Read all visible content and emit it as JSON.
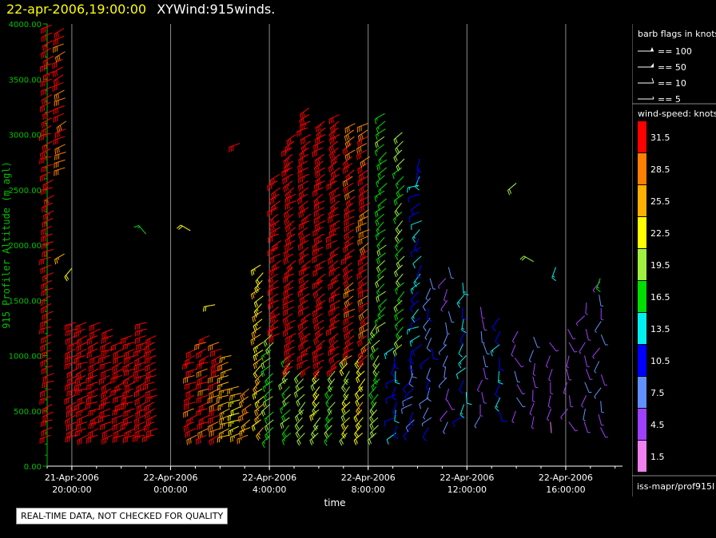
{
  "header": {
    "datetime": "22-apr-2006,19:00:00",
    "title": "XYWind:915winds."
  },
  "qc_notice": "REAL-TIME DATA, NOT CHECKED FOR QUALITY",
  "footer_id": "iss-mapr/prof915I",
  "legend": {
    "barb_title": "barb flags in knots",
    "barb_entries": [
      "== 100",
      "== 50",
      "== 10",
      "== 5"
    ],
    "speed_title": "wind-speed: knots",
    "speed_bins": [
      {
        "label": "31.5",
        "color": "#ff0000"
      },
      {
        "label": "28.5",
        "color": "#ff8000"
      },
      {
        "label": "25.5",
        "color": "#ffb000"
      },
      {
        "label": "22.5",
        "color": "#ffff00"
      },
      {
        "label": "19.5",
        "color": "#a0f040"
      },
      {
        "label": "16.5",
        "color": "#00dd00"
      },
      {
        "label": "13.5",
        "color": "#00f0f0"
      },
      {
        "label": "10.5",
        "color": "#0000ff"
      },
      {
        "label": "7.5",
        "color": "#6090ff"
      },
      {
        "label": "4.5",
        "color": "#a040ff"
      },
      {
        "label": "1.5",
        "color": "#f080f0"
      }
    ]
  },
  "chart_data": {
    "type": "scatter",
    "subtype": "wind-barb time-height",
    "xlabel": "time",
    "ylabel": "915 Profiler Altitude (m agl)",
    "ylim": [
      0,
      4000
    ],
    "xlim_hours_from_start": [
      -1.0,
      22.3
    ],
    "xticks": [
      {
        "hour": 0,
        "line1": "21-Apr-2006",
        "line2": "20:00:00"
      },
      {
        "hour": 4,
        "line1": "22-Apr-2006",
        "line2": "0:00:00"
      },
      {
        "hour": 8,
        "line1": "22-Apr-2006",
        "line2": "4:00:00"
      },
      {
        "hour": 12,
        "line1": "22-Apr-2006",
        "line2": "8:00:00"
      },
      {
        "hour": 16,
        "line1": "22-Apr-2006",
        "line2": "12:00:00"
      },
      {
        "hour": 20,
        "line1": "22-Apr-2006",
        "line2": "16:00:00"
      }
    ],
    "yticks": [
      "0.00",
      "500.00",
      "1000.00",
      "1500.00",
      "2000.00",
      "2500.00",
      "3000.00",
      "3500.00",
      "4000.00"
    ],
    "grid_x": true,
    "legend_placement": "right",
    "speed_colors": [
      "#f080f0",
      "#a040ff",
      "#6090ff",
      "#0000ff",
      "#00f0f0",
      "#00dd00",
      "#a0f040",
      "#ffff00",
      "#ffb000",
      "#ff8000",
      "#ff0000"
    ],
    "barb_series": [
      {
        "name": "t-0.8",
        "hour": -0.8,
        "alt_min": 280,
        "alt_max": 4000,
        "step": 70,
        "speed": 32,
        "dir": 250
      },
      {
        "name": "t-0.3",
        "hour": -0.3,
        "alt_min": 2700,
        "alt_max": 4000,
        "step": 70,
        "speed": 30,
        "dir": 245
      },
      {
        "name": "t0.2",
        "hour": 0.2,
        "alt_min": 280,
        "alt_max": 1300,
        "step": 60,
        "speed": 32,
        "dir": 250
      },
      {
        "name": "t0.6",
        "hour": 0.6,
        "alt_min": 280,
        "alt_max": 1300,
        "step": 60,
        "speed": 32,
        "dir": 250
      },
      {
        "name": "t1.1",
        "hour": 1.1,
        "alt_min": 280,
        "alt_max": 1300,
        "step": 60,
        "speed": 32,
        "dir": 250
      },
      {
        "name": "t1.6",
        "hour": 1.6,
        "alt_min": 280,
        "alt_max": 1250,
        "step": 60,
        "speed": 32,
        "dir": 250
      },
      {
        "name": "t2.1",
        "hour": 2.1,
        "alt_min": 280,
        "alt_max": 1150,
        "step": 60,
        "speed": 32,
        "dir": 250
      },
      {
        "name": "t2.5",
        "hour": 2.5,
        "alt_min": 280,
        "alt_max": 1200,
        "step": 60,
        "speed": 32,
        "dir": 250
      },
      {
        "name": "t3.0",
        "hour": 3.0,
        "alt_min": 280,
        "alt_max": 1300,
        "step": 60,
        "speed": 32,
        "dir": 250
      },
      {
        "name": "t3.4",
        "hour": 3.4,
        "alt_min": 280,
        "alt_max": 1200,
        "step": 60,
        "speed": 32,
        "dir": 250
      },
      {
        "name": "t5.0",
        "hour": 5.0,
        "alt_min": 280,
        "alt_max": 1100,
        "step": 60,
        "speed": 31,
        "dir": 250
      },
      {
        "name": "t5.5",
        "hour": 5.5,
        "alt_min": 280,
        "alt_max": 1200,
        "step": 60,
        "speed": 31,
        "dir": 250
      },
      {
        "name": "t6.0",
        "hour": 6.0,
        "alt_min": 280,
        "alt_max": 1150,
        "step": 60,
        "speed": 30,
        "dir": 250
      },
      {
        "name": "t6.4",
        "hour": 6.4,
        "alt_min": 280,
        "alt_max": 1000,
        "step": 60,
        "speed": 26,
        "dir": 250
      },
      {
        "name": "t6.8",
        "hour": 6.8,
        "alt_min": 300,
        "alt_max": 750,
        "step": 60,
        "speed": 23,
        "dir": 250
      },
      {
        "name": "t7.2",
        "hour": 7.2,
        "alt_min": 280,
        "alt_max": 700,
        "step": 70,
        "speed": 27,
        "dir": 240
      },
      {
        "name": "t7.7",
        "hour": 7.7,
        "alt_min": 350,
        "alt_max": 1850,
        "step": 70,
        "speed": 24,
        "dir": 230
      },
      {
        "name": "t8.1",
        "hour": 8.1,
        "alt_min": 280,
        "alt_max": 1200,
        "step": 70,
        "speed": 17,
        "dir": 230
      },
      {
        "name": "t8.4",
        "hour": 8.4,
        "alt_min": 1200,
        "alt_max": 2650,
        "step": 60,
        "speed": 32,
        "dir": 240
      },
      {
        "name": "t8.8",
        "hour": 8.8,
        "alt_min": 300,
        "alt_max": 1000,
        "step": 70,
        "speed": 18,
        "dir": 225
      },
      {
        "name": "t9.0",
        "hour": 9.0,
        "alt_min": 900,
        "alt_max": 3050,
        "step": 60,
        "speed": 32,
        "dir": 240
      },
      {
        "name": "t9.4",
        "hour": 9.4,
        "alt_min": 300,
        "alt_max": 900,
        "step": 70,
        "speed": 20,
        "dir": 225
      },
      {
        "name": "t9.6",
        "hour": 9.6,
        "alt_min": 900,
        "alt_max": 3250,
        "step": 60,
        "speed": 32,
        "dir": 240
      },
      {
        "name": "t10.0",
        "hour": 10.0,
        "alt_min": 300,
        "alt_max": 900,
        "step": 70,
        "speed": 22,
        "dir": 225
      },
      {
        "name": "t10.2",
        "hour": 10.2,
        "alt_min": 900,
        "alt_max": 3150,
        "step": 60,
        "speed": 32,
        "dir": 240
      },
      {
        "name": "t10.6",
        "hour": 10.6,
        "alt_min": 300,
        "alt_max": 900,
        "step": 70,
        "speed": 18,
        "dir": 220
      },
      {
        "name": "t10.8",
        "hour": 10.8,
        "alt_min": 900,
        "alt_max": 3200,
        "step": 60,
        "speed": 32,
        "dir": 240
      },
      {
        "name": "t11.2",
        "hour": 11.2,
        "alt_min": 300,
        "alt_max": 1000,
        "step": 70,
        "speed": 21,
        "dir": 220
      },
      {
        "name": "t11.4",
        "hour": 11.4,
        "alt_min": 1000,
        "alt_max": 3150,
        "step": 60,
        "speed": 31,
        "dir": 240
      },
      {
        "name": "t11.8",
        "hour": 11.8,
        "alt_min": 300,
        "alt_max": 1000,
        "step": 70,
        "speed": 23,
        "dir": 220
      },
      {
        "name": "t12.0",
        "hour": 12.0,
        "alt_min": 1000,
        "alt_max": 3150,
        "step": 60,
        "speed": 30,
        "dir": 240
      },
      {
        "name": "t12.4",
        "hour": 12.4,
        "alt_min": 300,
        "alt_max": 1300,
        "step": 70,
        "speed": 19,
        "dir": 220
      },
      {
        "name": "t12.7",
        "hour": 12.7,
        "alt_min": 1300,
        "alt_max": 3200,
        "step": 70,
        "speed": 17,
        "dir": 230
      },
      {
        "name": "t13.1",
        "hour": 13.1,
        "alt_min": 300,
        "alt_max": 1100,
        "step": 70,
        "speed": 11,
        "dir": 210
      },
      {
        "name": "t13.4",
        "hour": 13.4,
        "alt_min": 1100,
        "alt_max": 3050,
        "step": 80,
        "speed": 18,
        "dir": 225
      },
      {
        "name": "t13.8",
        "hour": 13.8,
        "alt_min": 350,
        "alt_max": 1100,
        "step": 70,
        "speed": 10,
        "dir": 210
      },
      {
        "name": "t14.1",
        "hour": 14.1,
        "alt_min": 1100,
        "alt_max": 2800,
        "step": 80,
        "speed": 12,
        "dir": 220
      },
      {
        "name": "t14.5",
        "hour": 14.5,
        "alt_min": 350,
        "alt_max": 1700,
        "step": 90,
        "speed": 8,
        "dir": 200
      },
      {
        "name": "t15.2",
        "hour": 15.2,
        "alt_min": 400,
        "alt_max": 1800,
        "step": 100,
        "speed": 6,
        "dir": 190
      },
      {
        "name": "t15.9",
        "hour": 15.9,
        "alt_min": 450,
        "alt_max": 1700,
        "step": 110,
        "speed": 12,
        "dir": 210
      },
      {
        "name": "t16.6",
        "hour": 16.6,
        "alt_min": 450,
        "alt_max": 1500,
        "step": 110,
        "speed": 5,
        "dir": 180
      },
      {
        "name": "t17.3",
        "hour": 17.3,
        "alt_min": 500,
        "alt_max": 1400,
        "step": 120,
        "speed": 12,
        "dir": 200
      },
      {
        "name": "t18.0",
        "hour": 18.0,
        "alt_min": 500,
        "alt_max": 1300,
        "step": 120,
        "speed": 6,
        "dir": 180
      },
      {
        "name": "t18.7",
        "hour": 18.7,
        "alt_min": 450,
        "alt_max": 1200,
        "step": 120,
        "speed": 5,
        "dir": 170
      },
      {
        "name": "t19.4",
        "hour": 19.4,
        "alt_min": 400,
        "alt_max": 1150,
        "step": 120,
        "speed": 4,
        "dir": 170
      },
      {
        "name": "t20.1",
        "hour": 20.1,
        "alt_min": 400,
        "alt_max": 1300,
        "step": 120,
        "speed": 5,
        "dir": 180
      },
      {
        "name": "t20.8",
        "hour": 20.8,
        "alt_min": 400,
        "alt_max": 1500,
        "step": 120,
        "speed": 5,
        "dir": 190
      },
      {
        "name": "t21.4",
        "hour": 21.4,
        "alt_min": 350,
        "alt_max": 1700,
        "step": 120,
        "speed": 6,
        "dir": 190
      }
    ],
    "isolated_barbs": [
      {
        "hour": -0.3,
        "alt": 1920,
        "speed": 26,
        "dir": 240
      },
      {
        "hour": 0.0,
        "alt": 1790,
        "speed": 22,
        "dir": 220
      },
      {
        "hour": 3.0,
        "alt": 2100,
        "speed": 15,
        "dir": 320
      },
      {
        "hour": 4.8,
        "alt": 2130,
        "speed": 22,
        "dir": 300
      },
      {
        "hour": 5.8,
        "alt": 1460,
        "speed": 22,
        "dir": 260
      },
      {
        "hour": 6.8,
        "alt": 2920,
        "speed": 30,
        "dir": 250
      },
      {
        "hour": 18.0,
        "alt": 2560,
        "speed": 20,
        "dir": 230
      },
      {
        "hour": 18.7,
        "alt": 1850,
        "speed": 18,
        "dir": 300
      },
      {
        "hour": 19.6,
        "alt": 1800,
        "speed": 13,
        "dir": 200
      },
      {
        "hour": 21.4,
        "alt": 1700,
        "speed": 17,
        "dir": 200
      }
    ]
  }
}
